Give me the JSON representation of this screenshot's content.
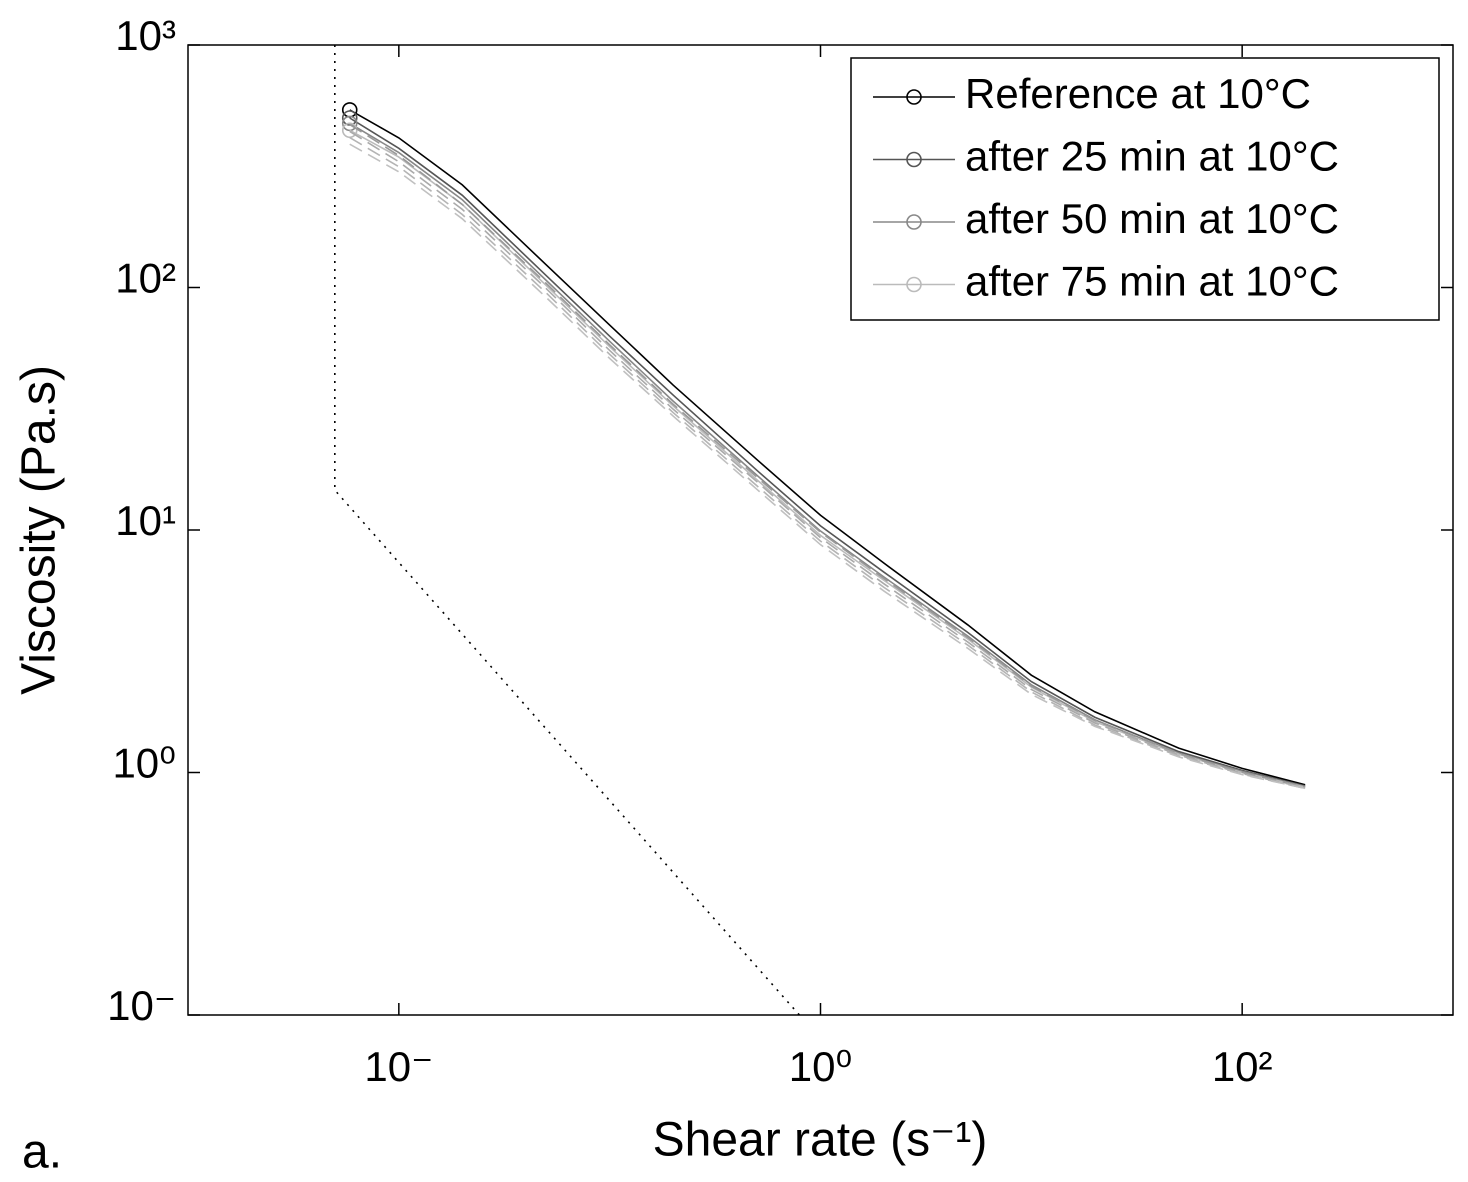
{
  "chart_data": {
    "type": "line",
    "xlabel": "Shear rate (s⁻¹)",
    "ylabel": "Viscosity (Pa.s)",
    "panel_label": "a.",
    "xlog": true,
    "ylog": true,
    "xlim": [
      0.001,
      1000
    ],
    "ylim": [
      0.1,
      1000
    ],
    "xticks": [
      {
        "value": 0.01,
        "label": "10⁻"
      },
      {
        "value": 1,
        "label": "10⁰"
      },
      {
        "value": 100,
        "label": "10²"
      }
    ],
    "yticks": [
      {
        "value": 0.1,
        "label": "10⁻"
      },
      {
        "value": 1,
        "label": "10⁰"
      },
      {
        "value": 10,
        "label": "10¹"
      },
      {
        "value": 100,
        "label": "10²"
      },
      {
        "value": 1000,
        "label": "10³"
      }
    ],
    "legend": "upper right",
    "series": [
      {
        "name": "Reference at 10°C",
        "color": "#000000",
        "marker": "circle",
        "dash": "solid",
        "x": [
          0.00585,
          0.01,
          0.02,
          0.05,
          0.1,
          0.2,
          0.5,
          1,
          2,
          5,
          10,
          20,
          50,
          100,
          199
        ],
        "values": [
          540,
          414,
          265,
          124,
          70,
          39.6,
          19.5,
          11.5,
          7.3,
          4.06,
          2.52,
          1.78,
          1.26,
          1.04,
          0.89
        ]
      },
      {
        "name": "after 25 min at 10°C",
        "color": "#555555",
        "marker": "circle",
        "dash": "solid",
        "x": [
          0.00585,
          0.01,
          0.02,
          0.05,
          0.1,
          0.2,
          0.5,
          1,
          2,
          5,
          10,
          20,
          50,
          100,
          199
        ],
        "values": [
          500,
          375,
          240,
          112,
          63,
          36,
          17.6,
          10.4,
          6.7,
          3.78,
          2.37,
          1.69,
          1.22,
          1.02,
          0.88
        ]
      },
      {
        "name": "after 50 min at 10°C",
        "color": "#888888",
        "marker": "circle",
        "dash": "solid",
        "x": [
          0.00585,
          0.01,
          0.02,
          0.05,
          0.1,
          0.2,
          0.5,
          1,
          2,
          5,
          10,
          20,
          50,
          100,
          199
        ],
        "values": [
          475,
          360,
          230,
          107,
          60,
          34,
          16.8,
          9.9,
          6.4,
          3.65,
          2.3,
          1.65,
          1.2,
          1.01,
          0.875
        ]
      },
      {
        "name": "after 75 min at 10°C",
        "color": "#bbbbbb",
        "marker": "circle",
        "dash": "solid",
        "x": [
          0.00585,
          0.01,
          0.02,
          0.05,
          0.1,
          0.2,
          0.5,
          1,
          2,
          5,
          10,
          20,
          50,
          100,
          199
        ],
        "values": [
          445,
          345,
          220,
          102,
          57,
          32.5,
          16.1,
          9.5,
          6.2,
          3.55,
          2.25,
          1.62,
          1.19,
          1.0,
          0.87
        ]
      },
      {
        "color": "#999999",
        "dash": "dashed",
        "x": [
          0.00585,
          0.01,
          0.02,
          0.05,
          0.1,
          0.2,
          0.5,
          1,
          2,
          5,
          10,
          20,
          50,
          100,
          199
        ],
        "values": [
          470,
          350,
          220,
          104,
          58,
          33,
          16.5,
          9.8,
          6.3,
          3.6,
          2.27,
          1.64,
          1.2,
          1.0,
          0.87
        ]
      },
      {
        "color": "#aaaaaa",
        "dash": "dashed",
        "x": [
          0.00585,
          0.01,
          0.02,
          0.05,
          0.1,
          0.2,
          0.5,
          1,
          2,
          5,
          10,
          20,
          50,
          100,
          199
        ],
        "values": [
          440,
          330,
          210,
          99,
          55,
          31.5,
          15.8,
          9.3,
          6.0,
          3.45,
          2.2,
          1.6,
          1.18,
          0.99,
          0.865
        ]
      },
      {
        "color": "#b4b4b4",
        "dash": "dashed",
        "x": [
          0.00585,
          0.01,
          0.02,
          0.05,
          0.1,
          0.2,
          0.5,
          1,
          2,
          5,
          10,
          20,
          50,
          100,
          199
        ],
        "values": [
          415,
          315,
          200,
          95,
          53,
          30.5,
          15.2,
          9.0,
          5.8,
          3.35,
          2.15,
          1.57,
          1.17,
          0.985,
          0.86
        ]
      },
      {
        "color": "#c0c0c0",
        "dash": "dashed",
        "x": [
          0.00585,
          0.01,
          0.02,
          0.05,
          0.1,
          0.2,
          0.5,
          1,
          2,
          5,
          10,
          20,
          50,
          100,
          199
        ],
        "values": [
          390,
          300,
          192,
          91,
          51,
          29.5,
          14.7,
          8.7,
          5.6,
          3.25,
          2.1,
          1.55,
          1.16,
          0.98,
          0.86
        ]
      },
      {
        "color": "#000000",
        "dash": "dotted",
        "x": [
          0.00497,
          0.00497,
          0.794
        ],
        "values": [
          1000,
          14.6,
          0.1
        ]
      }
    ]
  }
}
